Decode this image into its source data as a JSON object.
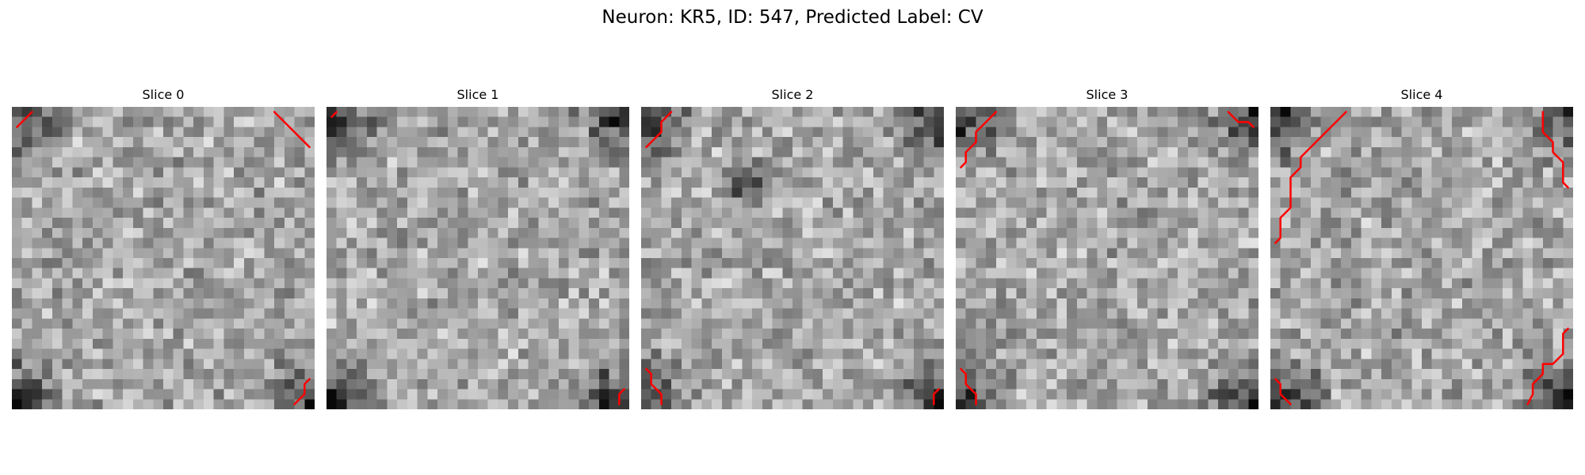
{
  "title": "Neuron: KR5, ID: 547, Predicted Label: CV",
  "colormap": "gray",
  "contour_color": "#ff0000",
  "grid_size": 30,
  "slices": [
    {
      "label": "Slice 0",
      "dark_corners": [
        "top-left",
        "bottom-left",
        "bottom-right"
      ],
      "contours": [
        [
          [
            0.5,
            2.0
          ],
          [
            2.0,
            0.5
          ]
        ],
        [
          [
            26.0,
            0.5
          ],
          [
            29.5,
            4.0
          ]
        ],
        [
          [
            29.5,
            27.0
          ],
          [
            29.0,
            27.5
          ],
          [
            29.0,
            28.5
          ],
          [
            28.0,
            29.5
          ]
        ]
      ]
    },
    {
      "label": "Slice 1",
      "dark_corners": [
        "top-left",
        "top-right",
        "bottom-left",
        "bottom-right"
      ],
      "contours": [
        [
          [
            0.5,
            1.0
          ],
          [
            1.0,
            0.5
          ]
        ],
        [
          [
            29.5,
            28.0
          ],
          [
            29.0,
            28.5
          ],
          [
            29.0,
            29.5
          ]
        ]
      ]
    },
    {
      "label": "Slice 2",
      "dark_corners": [
        "top-left",
        "top-right",
        "bottom-left",
        "bottom-right"
      ],
      "dark_spots": [
        [
          10.5,
          7.5,
          1.4
        ]
      ],
      "contours": [
        [
          [
            0.5,
            4.0
          ],
          [
            2.0,
            2.5
          ],
          [
            2.0,
            1.5
          ],
          [
            3.0,
            0.5
          ]
        ],
        [
          [
            0.5,
            26.0
          ],
          [
            1.0,
            26.5
          ],
          [
            1.0,
            27.5
          ],
          [
            2.0,
            28.5
          ],
          [
            2.0,
            29.5
          ]
        ],
        [
          [
            29.5,
            28.0
          ],
          [
            29.0,
            28.5
          ],
          [
            29.0,
            29.5
          ]
        ]
      ]
    },
    {
      "label": "Slice 3",
      "dark_corners": [
        "top-left",
        "top-right",
        "bottom-left",
        "bottom-right"
      ],
      "contours": [
        [
          [
            0.5,
            6.0
          ],
          [
            1.0,
            5.5
          ],
          [
            1.0,
            4.5
          ],
          [
            2.0,
            3.5
          ],
          [
            2.0,
            2.5
          ],
          [
            3.0,
            1.5
          ],
          [
            4.0,
            0.5
          ]
        ],
        [
          [
            27.0,
            0.5
          ],
          [
            28.0,
            1.5
          ],
          [
            29.0,
            1.5
          ],
          [
            29.5,
            2.0
          ]
        ],
        [
          [
            0.5,
            26.0
          ],
          [
            1.0,
            26.5
          ],
          [
            1.0,
            27.5
          ],
          [
            2.0,
            28.5
          ],
          [
            2.0,
            29.5
          ]
        ]
      ]
    },
    {
      "label": "Slice 4",
      "dark_corners": [
        "top-left",
        "top-right",
        "bottom-left",
        "bottom-right"
      ],
      "contours": [
        [
          [
            0.5,
            13.5
          ],
          [
            1.0,
            13.0
          ],
          [
            1.0,
            11.0
          ],
          [
            2.0,
            10.0
          ],
          [
            2.0,
            7.0
          ],
          [
            3.0,
            6.0
          ],
          [
            3.0,
            5.0
          ],
          [
            7.5,
            0.5
          ]
        ],
        [
          [
            27.0,
            0.5
          ],
          [
            27.0,
            2.5
          ],
          [
            28.0,
            3.5
          ],
          [
            28.0,
            4.5
          ],
          [
            29.0,
            5.5
          ],
          [
            29.0,
            7.5
          ],
          [
            29.5,
            8.0
          ]
        ],
        [
          [
            0.5,
            27.0
          ],
          [
            1.0,
            27.5
          ],
          [
            1.0,
            28.5
          ],
          [
            2.0,
            29.5
          ]
        ],
        [
          [
            29.5,
            22.0
          ],
          [
            29.0,
            22.5
          ],
          [
            29.0,
            24.5
          ],
          [
            28.0,
            25.5
          ],
          [
            27.0,
            25.5
          ],
          [
            27.0,
            26.5
          ],
          [
            26.0,
            27.5
          ],
          [
            26.0,
            28.5
          ],
          [
            25.5,
            29.5
          ]
        ]
      ]
    }
  ]
}
